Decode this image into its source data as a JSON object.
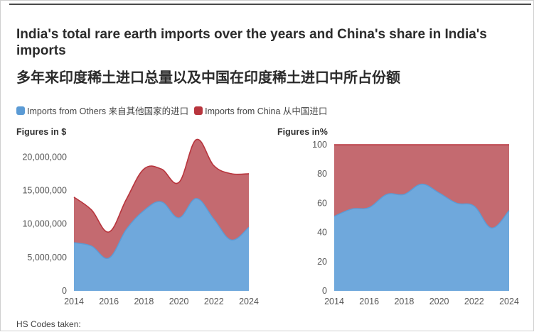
{
  "title": "India's total rare earth imports over the years and China's share in India's imports",
  "subtitle": "多年来印度稀土进口总量以及中国在印度稀土进口中所占份额",
  "legend": {
    "others": "Imports from Others  来自其他国家的进口",
    "china": "Imports from China  从中国进口"
  },
  "colors": {
    "others": "#6fa8dc",
    "china": "#c46a70",
    "china_line": "#b8353d",
    "others_line": "#5b9bd5"
  },
  "footer": "HS Codes taken:",
  "chart_data": [
    {
      "type": "area",
      "stacked": true,
      "panel_label": "Figures in $",
      "x": [
        2014,
        2015,
        2016,
        2017,
        2018,
        2019,
        2020,
        2021,
        2022,
        2023,
        2024
      ],
      "x_ticks": [
        "2014",
        "2016",
        "2018",
        "2020",
        "2022",
        "2024"
      ],
      "y_ticks": [
        "0",
        "5,000,000",
        "10,000,000",
        "15,000,000",
        "20,000,000"
      ],
      "ylim": [
        0,
        23000000
      ],
      "series": [
        {
          "name": "Imports from Others  来自其他国家的进口",
          "values": [
            7200000,
            6700000,
            4900000,
            9200000,
            12000000,
            13300000,
            10900000,
            13800000,
            10700000,
            7600000,
            9500000
          ]
        },
        {
          "name": "Imports from China  从中国进口",
          "values": [
            6800000,
            5400000,
            3900000,
            4500000,
            6200000,
            4900000,
            5300000,
            8800000,
            8000000,
            9900000,
            8000000
          ]
        }
      ]
    },
    {
      "type": "area",
      "stacked": true,
      "panel_label": "Figures in%",
      "x": [
        2014,
        2015,
        2016,
        2017,
        2018,
        2019,
        2020,
        2021,
        2022,
        2023,
        2024
      ],
      "x_ticks": [
        "2014",
        "2016",
        "2018",
        "2020",
        "2022",
        "2024"
      ],
      "y_ticks": [
        "0",
        "20",
        "40",
        "60",
        "80",
        "100"
      ],
      "ylim": [
        0,
        100
      ],
      "series": [
        {
          "name": "Imports from Others  来自其他国家的进口",
          "values": [
            51,
            56,
            57,
            66,
            66,
            73,
            67,
            60,
            58,
            43,
            55
          ]
        },
        {
          "name": "Imports from China  从中国进口",
          "values": [
            49,
            44,
            43,
            34,
            34,
            27,
            33,
            40,
            42,
            57,
            45
          ]
        }
      ]
    }
  ]
}
